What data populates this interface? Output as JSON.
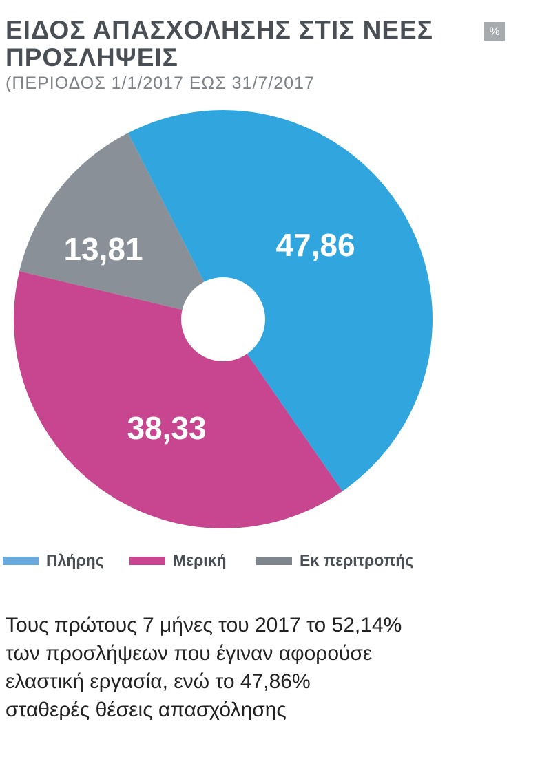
{
  "header": {
    "title_line1": "ΕΙΔΟΣ ΑΠΑΣΧΟΛΗΣΗΣ ΣΤΙΣ ΝΕΕΣ",
    "title_line2": "ΠΡΟΣΛΗΨΕΙΣ",
    "unit_badge": "%",
    "subtitle": "(ΠΕΡΙΟΔΟΣ 1/1/2017 ΕΩΣ 31/7/2017"
  },
  "chart_data": {
    "type": "pie",
    "donut": true,
    "unit": "%",
    "slices": [
      {
        "name": "Πλήρης",
        "value": 47.86,
        "label": "47,86",
        "color": "#31a6de"
      },
      {
        "name": "Μερική",
        "value": 38.33,
        "label": "38,33",
        "color": "#c8468f"
      },
      {
        "name": "Εκ περιτροπής",
        "value": 13.81,
        "label": "13,81",
        "color": "#8a9097"
      }
    ],
    "legend_position": "bottom"
  },
  "legend": {
    "items": [
      {
        "label": "Πλήρης",
        "color": "#6aa9dc"
      },
      {
        "label": "Μερική",
        "color": "#c8468f"
      },
      {
        "label": "Εκ περιτροπής",
        "color": "#7f858c"
      }
    ]
  },
  "note": {
    "lines": [
      "Τους πρώτους 7 μήνες του 2017 το 52,14%",
      "των προσλήψεων που έγιναν αφορούσε",
      "ελαστική εργασία, ενώ το 47,86%",
      "σταθερές θέσεις απασχόλησης"
    ]
  }
}
